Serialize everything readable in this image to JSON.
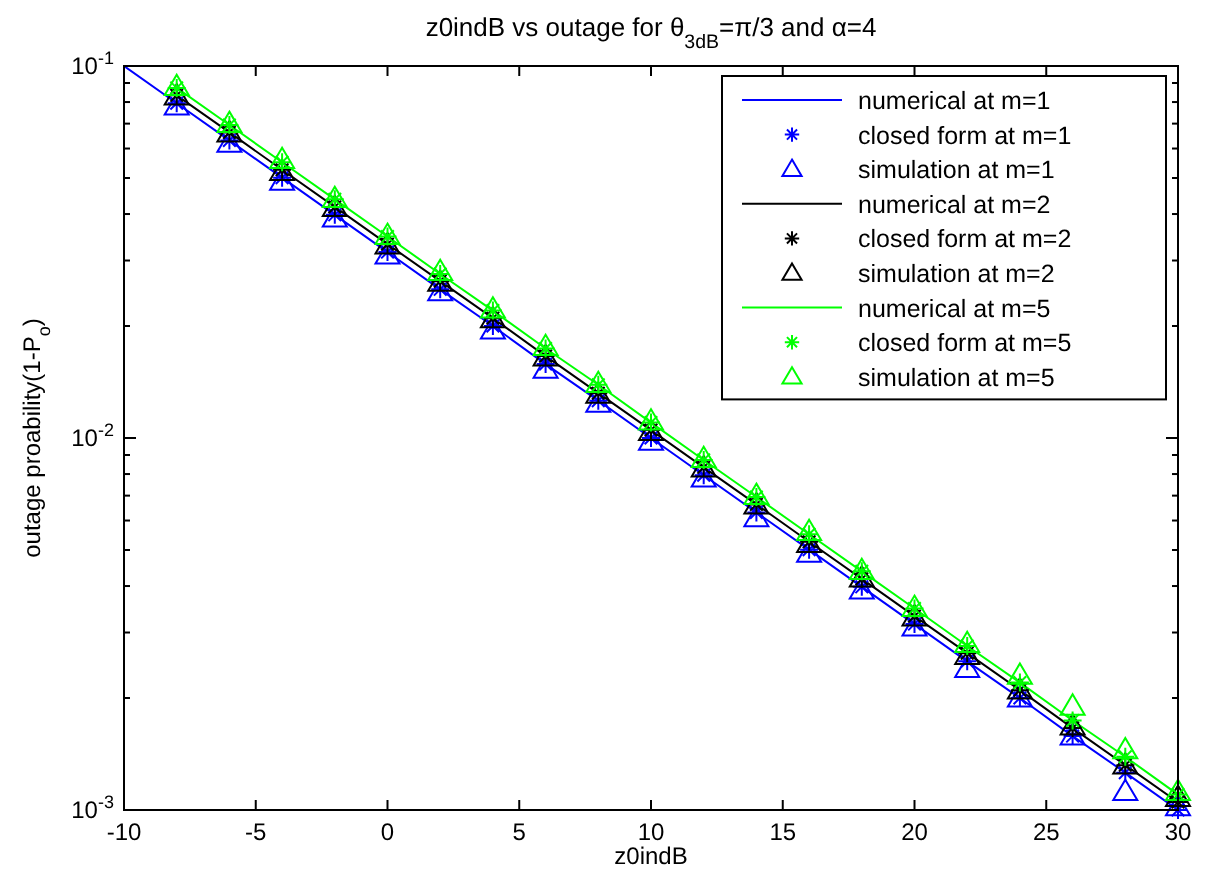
{
  "chart_data": {
    "type": "line",
    "title": "z0indB vs outage for θ$_{3dB}$=π/3 and α=4",
    "xlabel": "z0indB",
    "ylabel": "outage proability(1-P$_{o}$)",
    "log": "y",
    "xlim": [
      -10,
      30
    ],
    "xticks": [
      -10,
      -5,
      0,
      5,
      10,
      15,
      20,
      25,
      30
    ],
    "ylim": [
      0.001,
      0.1
    ],
    "yticks": [
      {
        "value": 0.1,
        "label": "10$^{-1}$"
      },
      {
        "value": 0.01,
        "label": "10$^{-2}$"
      },
      {
        "value": 0.001,
        "label": "10$^{-3}$"
      }
    ],
    "grid": false,
    "legend": "top right",
    "series": [
      {
        "name": "numerical at m=1",
        "color": "#0000ff",
        "x": [
          -10,
          -8,
          -6,
          -4,
          -2,
          0,
          2,
          4,
          6,
          8,
          10,
          12,
          14,
          16,
          18,
          20,
          22,
          24,
          26,
          28,
          30
        ],
        "values": [
          0.1,
          0.0794,
          0.0631,
          0.0501,
          0.0398,
          0.0316,
          0.0251,
          0.02,
          0.0158,
          0.0126,
          0.01,
          0.00794,
          0.00631,
          0.00501,
          0.00398,
          0.00316,
          0.00251,
          0.002,
          0.00158,
          0.00126,
          0.001
        ]
      },
      {
        "name": "closed form at m=1",
        "type": "scatter",
        "marker": "cross",
        "color": "#0000ff",
        "x": [
          -8,
          -6,
          -4,
          -2,
          0,
          2,
          4,
          6,
          8,
          10,
          12,
          14,
          16,
          18,
          20,
          22,
          24,
          26,
          28,
          30
        ],
        "values": [
          0.0794,
          0.0631,
          0.0501,
          0.0398,
          0.0316,
          0.0251,
          0.02,
          0.0158,
          0.0126,
          0.01,
          0.00794,
          0.00631,
          0.00501,
          0.00398,
          0.00316,
          0.00251,
          0.002,
          0.00158,
          0.00126,
          0.001
        ]
      },
      {
        "name": "simulation at m=1",
        "type": "scatter",
        "marker": "triangle",
        "color": "#0000ff",
        "x": [
          -8,
          -6,
          -4,
          -2,
          0,
          2,
          4,
          6,
          8,
          10,
          12,
          14,
          16,
          18,
          20,
          22,
          24,
          26,
          28,
          30
        ],
        "values": [
          0.078,
          0.062,
          0.049,
          0.039,
          0.031,
          0.0247,
          0.0195,
          0.0153,
          0.0124,
          0.0098,
          0.0078,
          0.0061,
          0.0049,
          0.0039,
          0.0031,
          0.0024,
          0.002,
          0.00158,
          0.00112,
          0.00102
        ]
      },
      {
        "name": "numerical at m=2",
        "color": "#000000",
        "x": [
          -8,
          -6,
          -4,
          -2,
          0,
          2,
          4,
          6,
          8,
          10,
          12,
          14,
          16,
          18,
          20,
          22,
          24,
          26,
          28,
          30
        ],
        "values": [
          0.0834,
          0.0663,
          0.0526,
          0.0418,
          0.0332,
          0.0264,
          0.021,
          0.0166,
          0.0132,
          0.0105,
          0.00834,
          0.00663,
          0.00526,
          0.00418,
          0.00332,
          0.00264,
          0.0021,
          0.00166,
          0.00132,
          0.00105
        ]
      },
      {
        "name": "closed form at m=2",
        "type": "scatter",
        "marker": "cross",
        "color": "#000000",
        "x": [
          -8,
          -6,
          -4,
          -2,
          0,
          2,
          4,
          6,
          8,
          10,
          12,
          14,
          16,
          18,
          20,
          22,
          24,
          26,
          28,
          30
        ],
        "values": [
          0.0834,
          0.0663,
          0.0526,
          0.0418,
          0.0332,
          0.0264,
          0.021,
          0.0166,
          0.0132,
          0.0105,
          0.00834,
          0.00663,
          0.00526,
          0.00418,
          0.00332,
          0.00264,
          0.0021,
          0.00166,
          0.00132,
          0.00105
        ]
      },
      {
        "name": "simulation at m=2",
        "type": "scatter",
        "marker": "triangle",
        "color": "#000000",
        "x": [
          -8,
          -6,
          -4,
          -2,
          0,
          2,
          4,
          6,
          8,
          10,
          12,
          14,
          16,
          18,
          20,
          22,
          24,
          26,
          28,
          30
        ],
        "values": [
          0.083,
          0.066,
          0.052,
          0.0416,
          0.033,
          0.0262,
          0.0209,
          0.0165,
          0.0131,
          0.0104,
          0.0083,
          0.0066,
          0.0052,
          0.0042,
          0.0033,
          0.0026,
          0.0021,
          0.00168,
          0.00132,
          0.00108
        ]
      },
      {
        "name": "numerical at m=5",
        "color": "#00ff00",
        "x": [
          -8,
          -6,
          -4,
          -2,
          0,
          2,
          4,
          6,
          8,
          10,
          12,
          14,
          16,
          18,
          20,
          22,
          24,
          26,
          28,
          30
        ],
        "values": [
          0.0873,
          0.0694,
          0.0551,
          0.0438,
          0.0348,
          0.0276,
          0.022,
          0.0174,
          0.0139,
          0.011,
          0.00873,
          0.00694,
          0.00551,
          0.00438,
          0.00348,
          0.00276,
          0.0022,
          0.00174,
          0.00139,
          0.0011
        ]
      },
      {
        "name": "closed form at m=5",
        "type": "scatter",
        "marker": "cross",
        "color": "#00ff00",
        "x": [
          -8,
          -6,
          -4,
          -2,
          0,
          2,
          4,
          6,
          8,
          10,
          12,
          14,
          16,
          18,
          20,
          22,
          24,
          26,
          28,
          30
        ],
        "values": [
          0.0873,
          0.0694,
          0.0551,
          0.0438,
          0.0348,
          0.0276,
          0.022,
          0.0174,
          0.0139,
          0.011,
          0.00873,
          0.00694,
          0.00551,
          0.00438,
          0.00348,
          0.00276,
          0.0022,
          0.00174,
          0.00139,
          0.0011
        ]
      },
      {
        "name": "simulation at m=5",
        "type": "scatter",
        "marker": "triangle",
        "color": "#00ff00",
        "x": [
          -8,
          -6,
          -4,
          -2,
          0,
          2,
          4,
          6,
          8,
          10,
          12,
          14,
          16,
          18,
          20,
          22,
          24,
          26,
          28,
          30
        ],
        "values": [
          0.088,
          0.07,
          0.056,
          0.044,
          0.035,
          0.028,
          0.0222,
          0.0176,
          0.014,
          0.0111,
          0.0088,
          0.007,
          0.0056,
          0.0044,
          0.0035,
          0.0028,
          0.0023,
          0.0019,
          0.00145,
          0.00112
        ]
      }
    ]
  }
}
